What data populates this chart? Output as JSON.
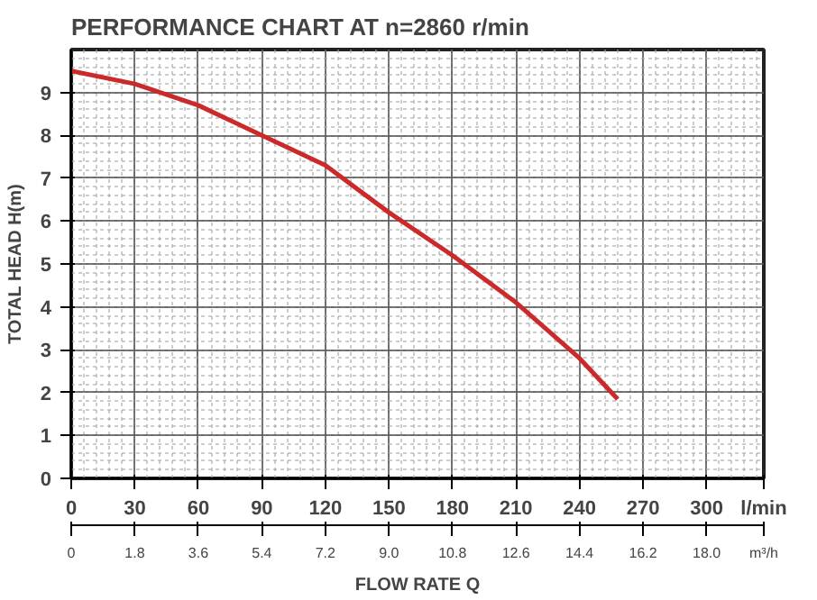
{
  "chart_data": {
    "type": "line",
    "title": "PERFORMANCE CHART AT n=2860 r/min",
    "xlabel": "FLOW RATE Q",
    "ylabel": "TOTAL HEAD H(m)",
    "x": [
      0,
      30,
      60,
      90,
      120,
      150,
      180,
      210,
      240,
      258
    ],
    "series": [
      {
        "color": "#cc2a2a",
        "values": [
          9.5,
          9.2,
          8.7,
          8.0,
          7.3,
          6.2,
          5.2,
          4.1,
          2.8,
          1.85
        ]
      }
    ],
    "xlim": [
      0,
      327
    ],
    "ylim": [
      0,
      10
    ],
    "xticks": [
      0,
      30,
      60,
      90,
      120,
      150,
      180,
      210,
      240,
      270,
      300
    ],
    "yticks": [
      0,
      1,
      2,
      3,
      4,
      5,
      6,
      7,
      8,
      9
    ],
    "x2lim": [
      0,
      19.62
    ],
    "x2ticks": [
      0,
      1.8,
      3.6,
      5.4,
      7.2,
      {
        "value": 9,
        "label": "9.0"
      },
      10.8,
      12.6,
      14.4,
      16.2,
      {
        "value": 18,
        "label": "18.0"
      }
    ],
    "annotations": [
      "l/min",
      "m³/h"
    ],
    "grid": true,
    "marker": "none",
    "line_style": "solid"
  }
}
